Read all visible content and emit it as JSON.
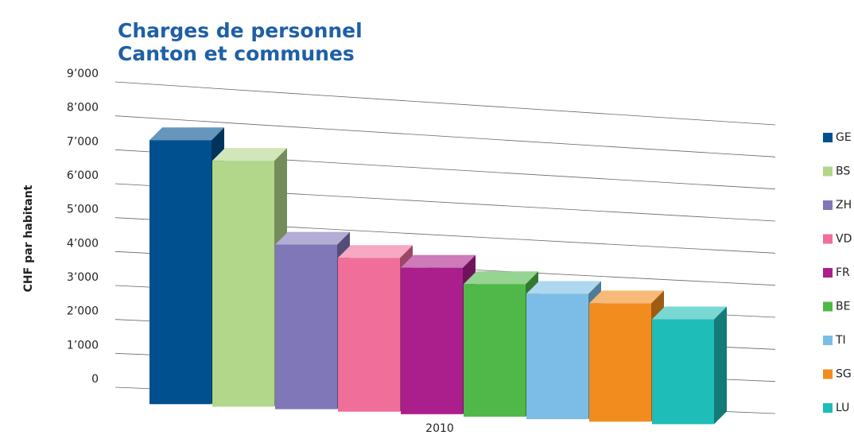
{
  "chart_data": {
    "type": "bar3d",
    "title": [
      "Charges de personnel",
      "Canton et communes"
    ],
    "y_label": "CHF par habitant",
    "categories": [
      "2010"
    ],
    "series": [
      {
        "name": "GE",
        "color": "#00508f",
        "values": [
          7400
        ]
      },
      {
        "name": "BS",
        "color": "#b2d68a",
        "values": [
          6900
        ]
      },
      {
        "name": "ZH",
        "color": "#7f77b8",
        "values": [
          4500
        ]
      },
      {
        "name": "VD",
        "color": "#f06f9a",
        "values": [
          4200
        ]
      },
      {
        "name": "FR",
        "color": "#ab1f8c",
        "values": [
          4000
        ]
      },
      {
        "name": "BE",
        "color": "#4fb848",
        "values": [
          3600
        ]
      },
      {
        "name": "TI",
        "color": "#7bbde6",
        "values": [
          3400
        ]
      },
      {
        "name": "SG",
        "color": "#f28c1e",
        "values": [
          3200
        ]
      },
      {
        "name": "LU",
        "color": "#1fbdb8",
        "values": [
          2800
        ]
      }
    ],
    "ylim": [
      0,
      9000
    ],
    "yticks": [
      0,
      {
        "value": 1000,
        "label": "1’000"
      },
      {
        "value": 2000,
        "label": "2’000"
      },
      {
        "value": 3000,
        "label": "3’000"
      },
      {
        "value": 4000,
        "label": "4’000"
      },
      {
        "value": 5000,
        "label": "5’000"
      },
      {
        "value": 6000,
        "label": "6’000"
      },
      {
        "value": 7000,
        "label": "7’000"
      },
      {
        "value": 8000,
        "label": "8’000"
      },
      {
        "value": 9000,
        "label": "9’000"
      }
    ],
    "grid": true,
    "legend": "right"
  }
}
